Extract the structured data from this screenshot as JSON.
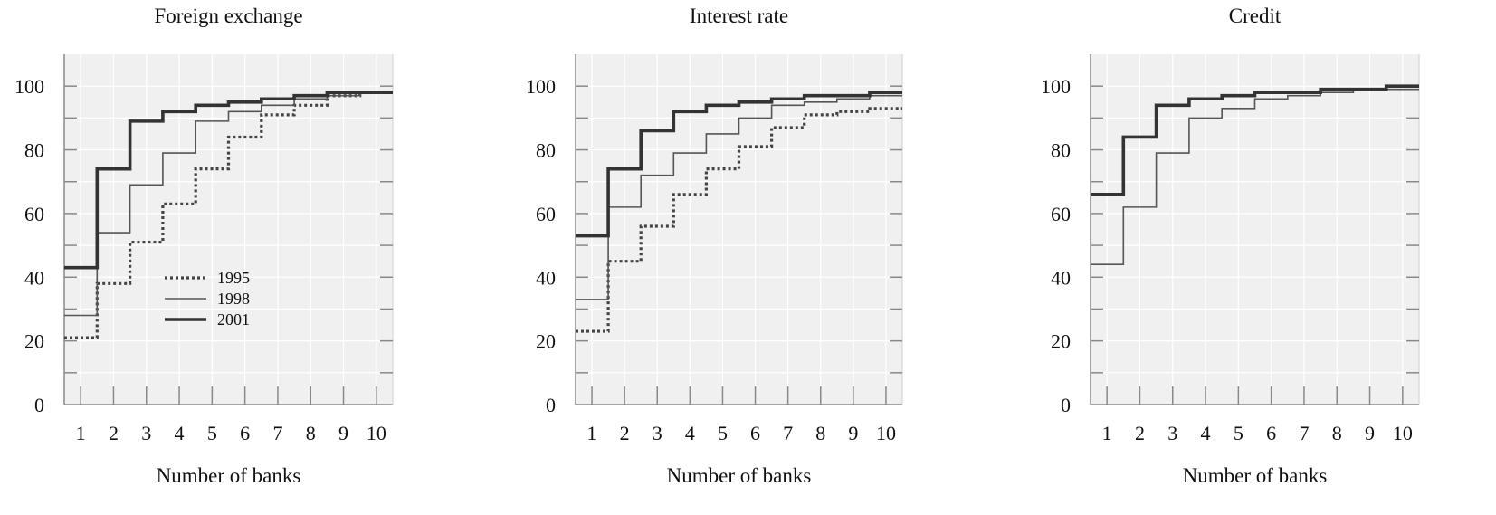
{
  "chart_data": [
    {
      "type": "line",
      "title": "Foreign exchange",
      "xlabel": "Number of banks",
      "ylabel": "",
      "xlim": [
        0.5,
        10.5
      ],
      "ylim": [
        0,
        110
      ],
      "x": [
        1,
        2,
        3,
        4,
        5,
        6,
        7,
        8,
        9,
        10
      ],
      "xticks": [
        "1",
        "2",
        "3",
        "4",
        "5",
        "6",
        "7",
        "8",
        "9",
        "10"
      ],
      "yticks": [
        "0",
        "20",
        "40",
        "60",
        "80",
        "100"
      ],
      "grid": true,
      "step": true,
      "legend": {
        "position": "center-left",
        "entries": [
          "1995",
          "1998",
          "2001"
        ]
      },
      "series": [
        {
          "name": "1995",
          "style": "dotted",
          "color": "#444444",
          "values": [
            21,
            38,
            51,
            63,
            74,
            84,
            91,
            94,
            97,
            98
          ]
        },
        {
          "name": "1998",
          "style": "thin",
          "color": "#555555",
          "values": [
            28,
            54,
            69,
            79,
            89,
            92,
            94,
            96,
            97,
            98
          ]
        },
        {
          "name": "2001",
          "style": "thick",
          "color": "#333333",
          "values": [
            43,
            74,
            89,
            92,
            94,
            95,
            96,
            97,
            98,
            98
          ]
        }
      ]
    },
    {
      "type": "line",
      "title": "Interest rate",
      "xlabel": "Number of banks",
      "ylabel": "",
      "xlim": [
        0.5,
        10.5
      ],
      "ylim": [
        0,
        110
      ],
      "x": [
        1,
        2,
        3,
        4,
        5,
        6,
        7,
        8,
        9,
        10
      ],
      "xticks": [
        "1",
        "2",
        "3",
        "4",
        "5",
        "6",
        "7",
        "8",
        "9",
        "10"
      ],
      "yticks": [
        "0",
        "20",
        "40",
        "60",
        "80",
        "100"
      ],
      "grid": true,
      "step": true,
      "series": [
        {
          "name": "1995",
          "style": "dotted",
          "color": "#444444",
          "values": [
            23,
            45,
            56,
            66,
            74,
            81,
            87,
            91,
            92,
            93
          ]
        },
        {
          "name": "1998",
          "style": "thin",
          "color": "#555555",
          "values": [
            33,
            62,
            72,
            79,
            85,
            90,
            94,
            95,
            96,
            97
          ]
        },
        {
          "name": "2001",
          "style": "thick",
          "color": "#333333",
          "values": [
            53,
            74,
            86,
            92,
            94,
            95,
            96,
            97,
            97,
            98
          ]
        }
      ]
    },
    {
      "type": "line",
      "title": "Credit",
      "xlabel": "Number of banks",
      "ylabel": "",
      "xlim": [
        0.5,
        10.5
      ],
      "ylim": [
        0,
        110
      ],
      "x": [
        1,
        2,
        3,
        4,
        5,
        6,
        7,
        8,
        9,
        10
      ],
      "xticks": [
        "1",
        "2",
        "3",
        "4",
        "5",
        "6",
        "7",
        "8",
        "9",
        "10"
      ],
      "yticks": [
        "0",
        "20",
        "40",
        "60",
        "80",
        "100"
      ],
      "grid": true,
      "step": true,
      "series": [
        {
          "name": "1998",
          "style": "thin",
          "color": "#555555",
          "values": [
            44,
            62,
            79,
            90,
            93,
            96,
            97,
            98,
            99,
            99
          ]
        },
        {
          "name": "2001",
          "style": "thick",
          "color": "#333333",
          "values": [
            66,
            84,
            94,
            96,
            97,
            98,
            98,
            99,
            99,
            100
          ]
        }
      ]
    }
  ]
}
